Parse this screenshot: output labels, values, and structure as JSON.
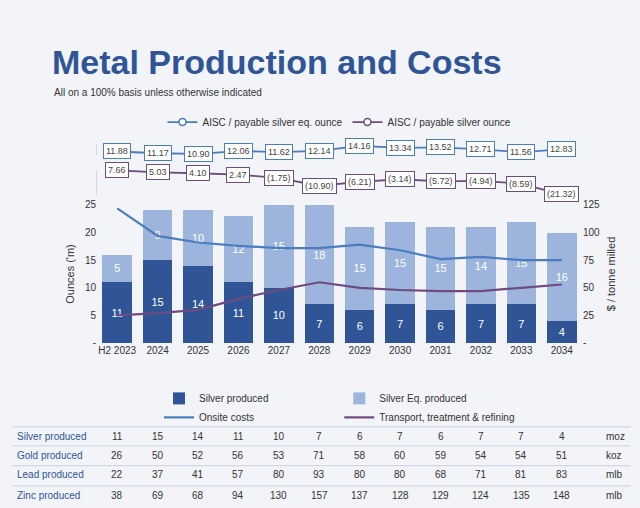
{
  "title": "Metal Production and Costs",
  "subtitle": "All on a 100% basis unless otherwise indicated",
  "chart_data": [
    {
      "type": "line",
      "categories": [
        "H2 2023",
        "2024",
        "2025",
        "2026",
        "2027",
        "2028",
        "2029",
        "2030",
        "2031",
        "2032",
        "2033",
        "2034"
      ],
      "series": [
        {
          "name": "AISC / payable silver eq. ounce",
          "color": "#4a7cc0",
          "marker": "circle",
          "values": [
            11.88,
            11.17,
            10.9,
            12.06,
            11.62,
            12.14,
            14.16,
            13.34,
            13.52,
            12.71,
            11.56,
            12.83
          ],
          "value_labels": [
            "11.88",
            "11.17",
            "10.90",
            "12.06",
            "11.62",
            "12.14",
            "14.16",
            "13.34",
            "13.52",
            "12.71",
            "11.56",
            "12.83"
          ]
        }
      ],
      "ylim": [
        10.5,
        14.5
      ],
      "tick_labels": false,
      "data_labels": true,
      "legend": "top"
    },
    {
      "type": "line",
      "categories": [
        "H2 2023",
        "2024",
        "2025",
        "2026",
        "2027",
        "2028",
        "2029",
        "2030",
        "2031",
        "2032",
        "2033",
        "2034"
      ],
      "series": [
        {
          "name": "AISC / payable silver ounce",
          "color": "#6e4b7e",
          "marker": "circle",
          "values": [
            7.66,
            5.03,
            4.1,
            2.47,
            -1.75,
            -10.9,
            -6.21,
            -3.14,
            -5.72,
            -4.94,
            -8.59,
            -21.32
          ],
          "value_labels": [
            "7.66",
            "5.03",
            "4.10",
            "2.47",
            "(1.75)",
            "(10.90)",
            "(6.21)",
            "(3.14)",
            "(5.72)",
            "(4.94)",
            "(8.59)",
            "(21.32)"
          ]
        }
      ],
      "ylim": [
        -22,
        8
      ],
      "tick_labels": false,
      "data_labels": true,
      "legend": "top"
    },
    {
      "type": "bar",
      "stacked": true,
      "categories": [
        "H2 2023",
        "2024",
        "2025",
        "2026",
        "2027",
        "2028",
        "2029",
        "2030",
        "2031",
        "2032",
        "2033",
        "2034"
      ],
      "series": [
        {
          "name": "Silver produced",
          "color": "#2f5597",
          "data_labels": true,
          "values": [
            11,
            15,
            14,
            11,
            10,
            7,
            6,
            7,
            6,
            7,
            7,
            4
          ]
        },
        {
          "name": "Silver Eq. produced",
          "color": "#9db5dc",
          "data_labels": true,
          "values": [
            5,
            9,
            10,
            12,
            15,
            18,
            15,
            15,
            15,
            14,
            15,
            16
          ]
        },
        {
          "name": "Onsite costs",
          "type": "line",
          "axis": "y2",
          "color": "#4a7cc0",
          "values": [
            122,
            97,
            91,
            88,
            86,
            86,
            89,
            84,
            76,
            78,
            75,
            75
          ]
        },
        {
          "name": "Transport, treatment & refining",
          "type": "line",
          "axis": "y2",
          "color": "#6e4b7e",
          "values": [
            25,
            27,
            30,
            40,
            48,
            55,
            50,
            48,
            47,
            47,
            50,
            53
          ]
        }
      ],
      "ylabel": "Ounces ('m)",
      "y2label": "$ / tonne milled",
      "ylim": [
        0,
        25
      ],
      "yticks": [
        {
          "value": 0,
          "label": "-"
        },
        5,
        10,
        15,
        20,
        25
      ],
      "y2lim": [
        0,
        125
      ],
      "y2ticks": [
        {
          "value": 0,
          "label": "-"
        },
        25,
        50,
        75,
        100,
        125
      ],
      "grid": false,
      "legend": "bottom"
    }
  ],
  "table": {
    "rows": [
      {
        "label": "Silver produced",
        "values": [
          11,
          15,
          14,
          11,
          10,
          7,
          6,
          7,
          6,
          7,
          7,
          4
        ],
        "unit": "moz"
      },
      {
        "label": "Gold produced",
        "values": [
          26,
          50,
          52,
          56,
          53,
          71,
          58,
          60,
          59,
          54,
          54,
          51
        ],
        "unit": "koz"
      },
      {
        "label": "Lead produced",
        "values": [
          22,
          37,
          41,
          57,
          80,
          93,
          80,
          80,
          68,
          71,
          81,
          83
        ],
        "unit": "mlb"
      },
      {
        "label": "Zinc produced",
        "values": [
          38,
          69,
          68,
          94,
          130,
          157,
          137,
          128,
          129,
          124,
          135,
          148
        ],
        "unit": "mlb"
      }
    ]
  }
}
